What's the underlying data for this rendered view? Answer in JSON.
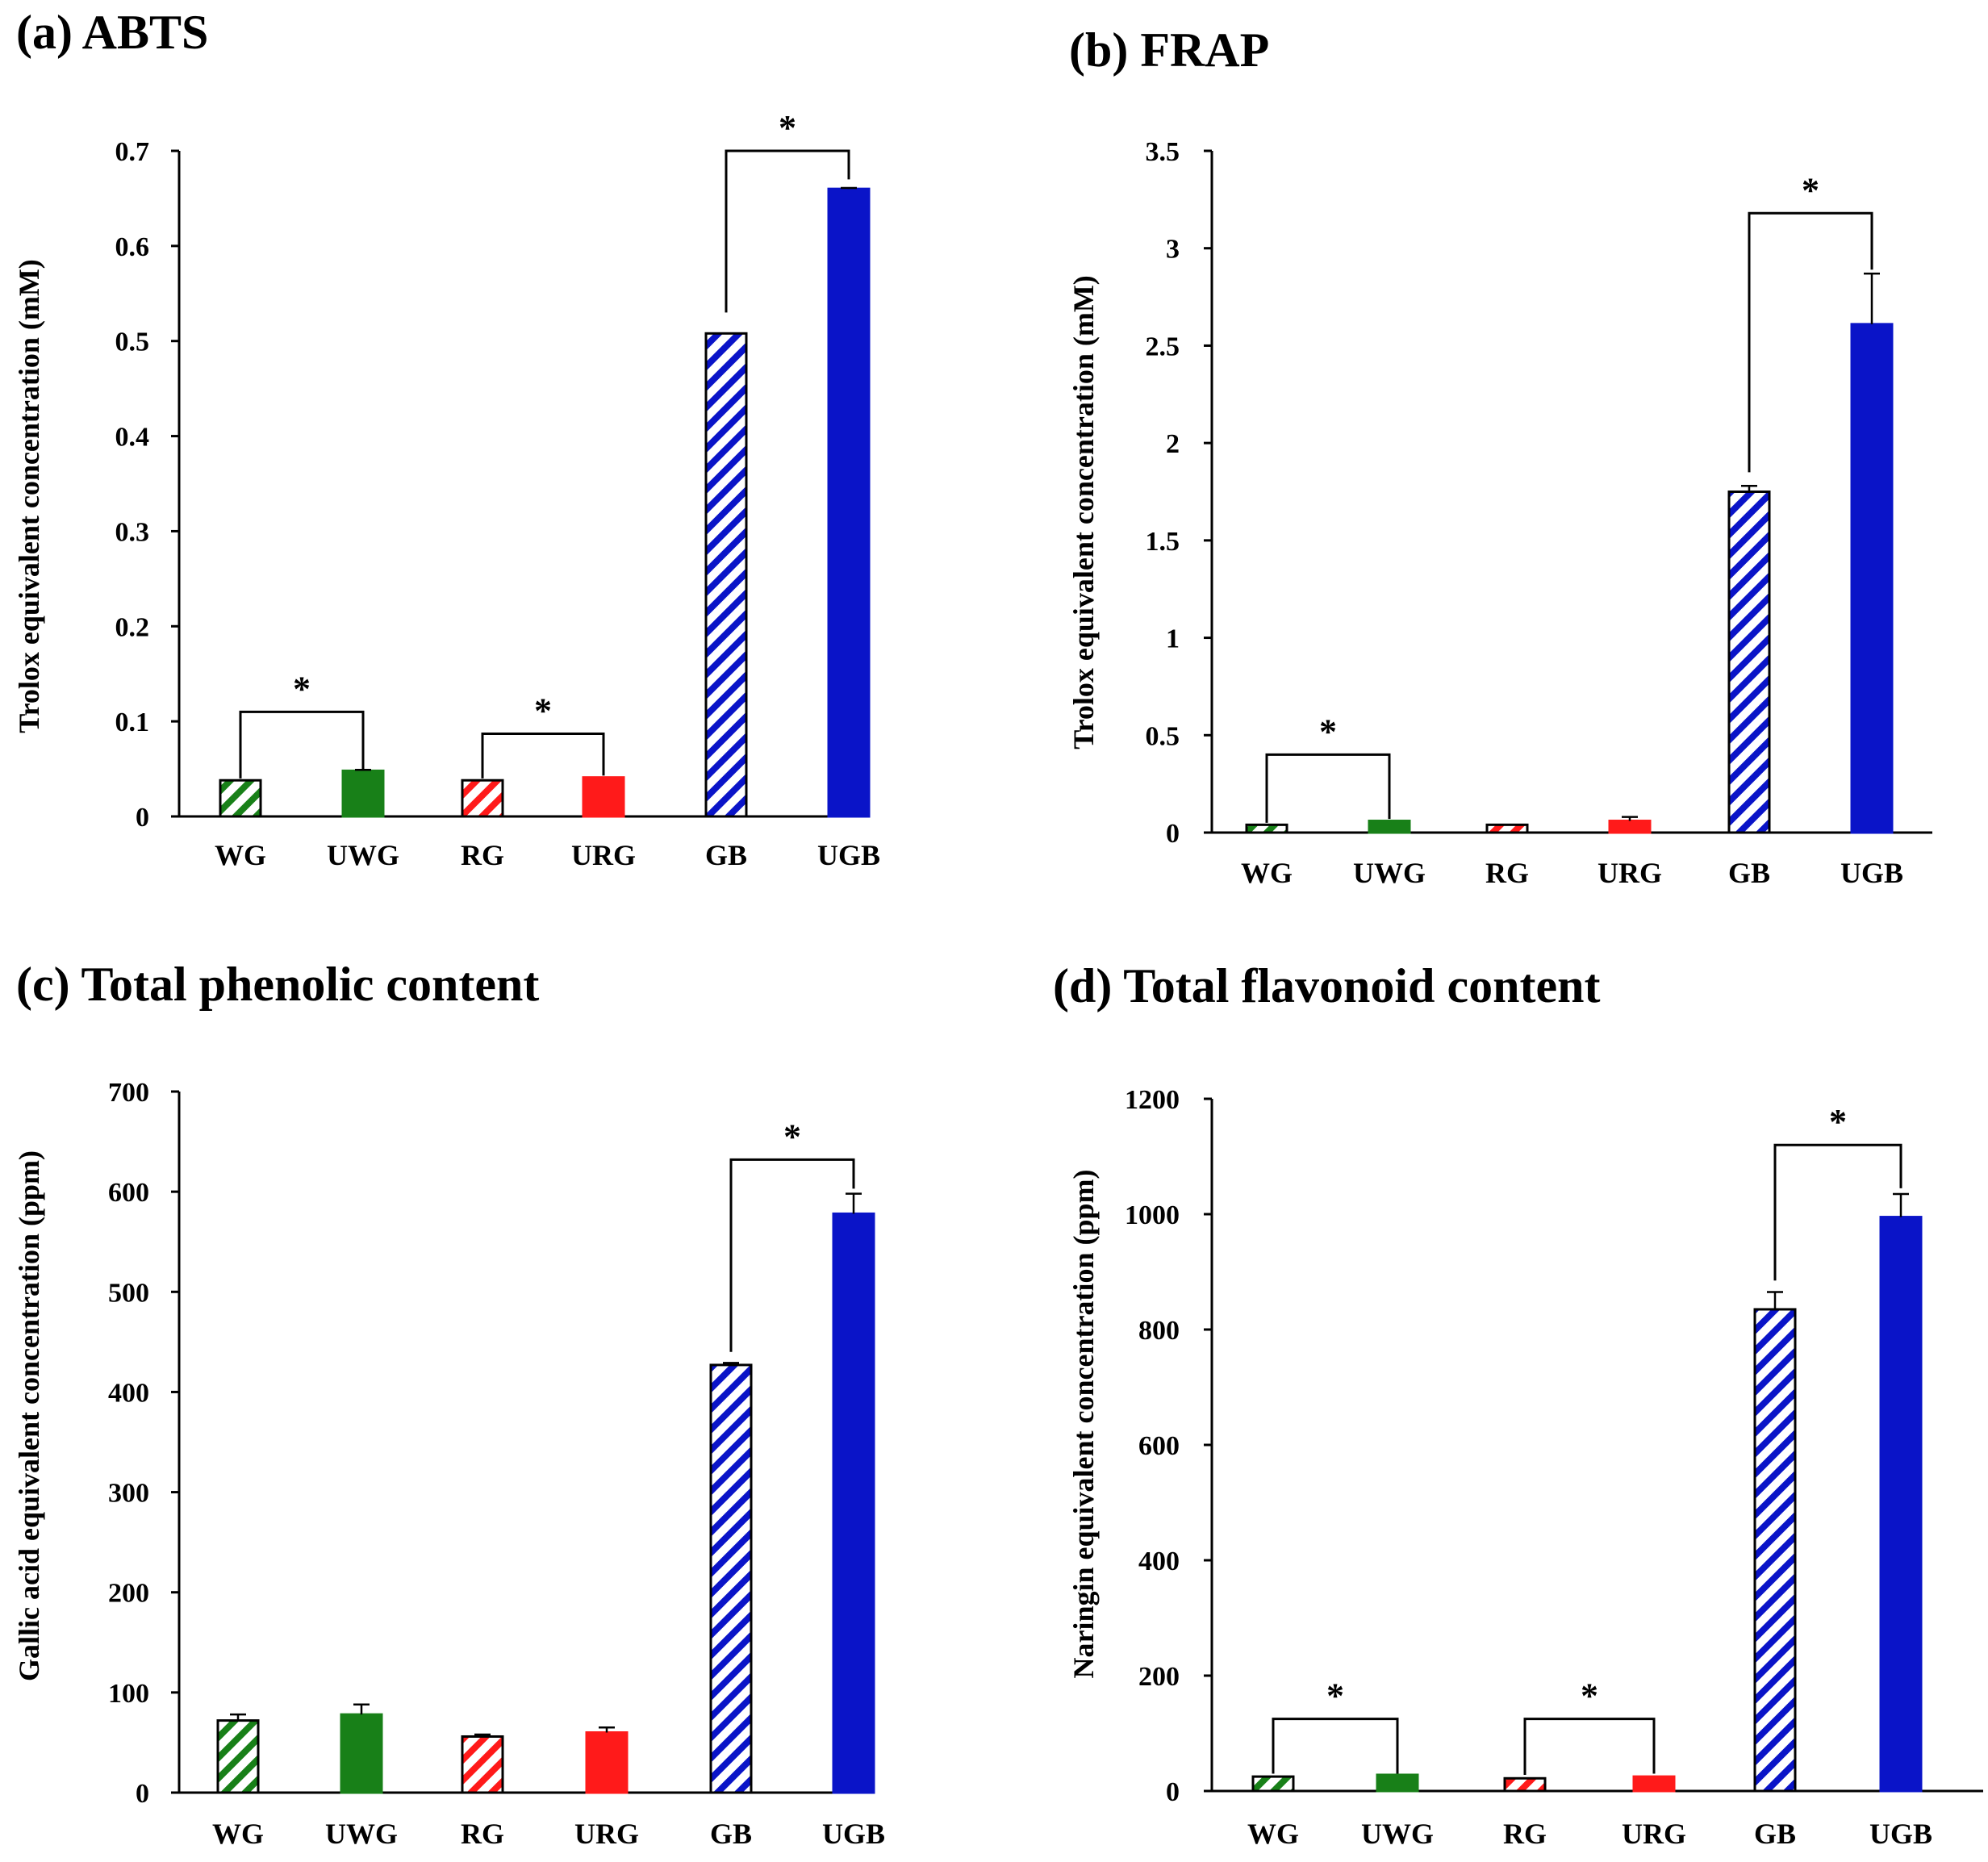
{
  "colors": {
    "green": "#188018",
    "red": "#ff1a1a",
    "blue": "#0a14c8",
    "axis": "#000000"
  },
  "chart_data": [
    {
      "type": "bar",
      "title": "(a) ABTS",
      "ylabel": "Trolox equivalent concentration (mM)",
      "categories": [
        "WG",
        "UWG",
        "RG",
        "URG",
        "GB",
        "UGB"
      ],
      "values": [
        0.038,
        0.048,
        0.038,
        0.041,
        0.508,
        0.66
      ],
      "errors": [
        0.0,
        0.001,
        0.0,
        0.0,
        0.0,
        0.001
      ],
      "styles": [
        "hatch-green",
        "solid-green",
        "hatch-red",
        "solid-red",
        "hatch-blue",
        "solid-blue"
      ],
      "ylim": [
        0,
        0.7
      ],
      "yticks": [
        0,
        0.1,
        0.2,
        0.3,
        0.4,
        0.5,
        0.6,
        0.7
      ],
      "ytick_labels": [
        "0",
        "0.1",
        "0.2",
        "0.3",
        "0.4",
        "0.5",
        "0.6",
        "0.7"
      ],
      "significance": [
        {
          "from": 0,
          "to": 1,
          "label": "*",
          "y": 0.11,
          "left_end": 0.04,
          "right_end": 0.05
        },
        {
          "from": 2,
          "to": 3,
          "label": "*",
          "y": 0.087,
          "left_end": 0.04,
          "right_end": 0.043
        },
        {
          "from": 4,
          "to": 5,
          "label": "*",
          "y": 0.7,
          "left_end": 0.53,
          "right_end": 0.67
        }
      ]
    },
    {
      "type": "bar",
      "title": "(b) FRAP",
      "ylabel": "Trolox equivalent concentration (mM)",
      "categories": [
        "WG",
        "UWG",
        "RG",
        "URG",
        "GB",
        "UGB"
      ],
      "values": [
        0.04,
        0.06,
        0.04,
        0.06,
        1.75,
        2.61
      ],
      "errors": [
        0.0,
        0.0,
        0.0,
        0.02,
        0.03,
        0.26
      ],
      "styles": [
        "hatch-green",
        "solid-green",
        "hatch-red",
        "solid-red",
        "hatch-blue",
        "solid-blue"
      ],
      "ylim": [
        0,
        3.5
      ],
      "yticks": [
        0,
        0.5,
        1,
        1.5,
        2,
        2.5,
        3,
        3.5
      ],
      "ytick_labels": [
        "0",
        "0.5",
        "1",
        "1.5",
        "2",
        "2.5",
        "3",
        "3.5"
      ],
      "significance": [
        {
          "from": 0,
          "to": 1,
          "label": "*",
          "y": 0.4,
          "left_end": 0.05,
          "right_end": 0.07
        },
        {
          "from": 4,
          "to": 5,
          "label": "*",
          "y": 3.18,
          "left_end": 1.85,
          "right_end": 2.89
        }
      ]
    },
    {
      "type": "bar",
      "title": "(c) Total phenolic content",
      "ylabel": "Gallic acid equivalent concentration (ppm)",
      "categories": [
        "WG",
        "UWG",
        "RG",
        "URG",
        "GB",
        "UGB"
      ],
      "values": [
        72,
        78,
        56,
        60,
        427,
        578
      ],
      "errors": [
        6,
        10,
        2,
        5,
        2,
        20
      ],
      "styles": [
        "hatch-green",
        "solid-green",
        "hatch-red",
        "solid-red",
        "hatch-blue",
        "solid-blue"
      ],
      "ylim": [
        0,
        700
      ],
      "yticks": [
        0,
        100,
        200,
        300,
        400,
        500,
        600,
        700
      ],
      "ytick_labels": [
        "0",
        "100",
        "200",
        "300",
        "400",
        "500",
        "600",
        "700"
      ],
      "significance": [
        {
          "from": 4,
          "to": 5,
          "label": "*",
          "y": 632,
          "left_end": 440,
          "right_end": 603
        }
      ]
    },
    {
      "type": "bar",
      "title": "(d) Total flavonoid content",
      "ylabel": "Naringin equivalent concentration (ppm)",
      "categories": [
        "WG",
        "UWG",
        "RG",
        "URG",
        "GB",
        "UGB"
      ],
      "values": [
        25,
        28,
        22,
        25,
        835,
        995
      ],
      "errors": [
        0,
        0,
        0,
        0,
        30,
        40
      ],
      "styles": [
        "hatch-green",
        "solid-green",
        "hatch-red",
        "solid-red",
        "hatch-blue",
        "solid-blue"
      ],
      "ylim": [
        0,
        1200
      ],
      "yticks": [
        0,
        200,
        400,
        600,
        800,
        1000,
        1200
      ],
      "ytick_labels": [
        "0",
        "200",
        "400",
        "600",
        "800",
        "1000",
        "1200"
      ],
      "significance": [
        {
          "from": 0,
          "to": 1,
          "label": "*",
          "y": 125,
          "left_end": 30,
          "right_end": 30
        },
        {
          "from": 2,
          "to": 3,
          "label": "*",
          "y": 125,
          "left_end": 28,
          "right_end": 30
        },
        {
          "from": 4,
          "to": 5,
          "label": "*",
          "y": 1120,
          "left_end": 885,
          "right_end": 1045
        }
      ]
    }
  ]
}
